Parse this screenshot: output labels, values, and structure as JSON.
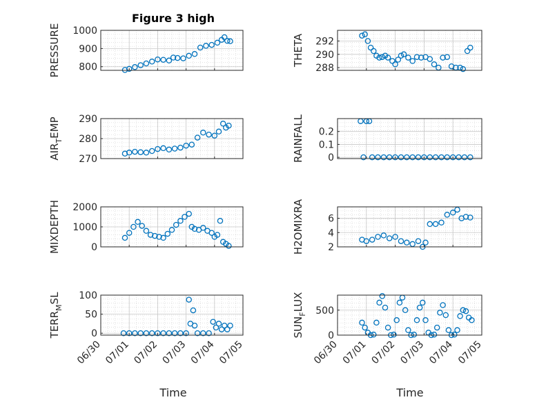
{
  "figure_title": "Figure 3 high",
  "x_label": "Time",
  "x_tick_labels": [
    "06/30",
    "07/01",
    "07/02",
    "07/03",
    "07/04",
    "07/05"
  ],
  "marker_color": "#0072BD",
  "chart_data": [
    {
      "type": "scatter",
      "title": "Figure 3 high",
      "ylabel": "PRESSURE",
      "xlim": [
        0,
        5
      ],
      "ylim": [
        780,
        1000
      ],
      "yticks": [
        800,
        900,
        1000
      ],
      "grid": true,
      "x": [
        0.85,
        1.0,
        1.2,
        1.4,
        1.6,
        1.8,
        2.0,
        2.2,
        2.4,
        2.55,
        2.7,
        2.9,
        3.1,
        3.3,
        3.5,
        3.7,
        3.9,
        4.1,
        4.25,
        4.35,
        4.45,
        4.55
      ],
      "y": [
        782,
        788,
        798,
        808,
        818,
        828,
        840,
        838,
        834,
        850,
        848,
        846,
        860,
        870,
        905,
        915,
        920,
        932,
        948,
        962,
        942,
        940
      ]
    },
    {
      "type": "scatter",
      "ylabel": "THETA",
      "xlim": [
        0,
        5
      ],
      "ylim": [
        287.6,
        293.6
      ],
      "yticks": [
        288,
        290,
        292
      ],
      "grid": true,
      "x": [
        0.85,
        0.95,
        1.05,
        1.15,
        1.25,
        1.35,
        1.45,
        1.55,
        1.65,
        1.75,
        1.9,
        2.0,
        2.1,
        2.2,
        2.3,
        2.45,
        2.6,
        2.75,
        2.9,
        3.05,
        3.2,
        3.35,
        3.5,
        3.65,
        3.8,
        3.95,
        4.1,
        4.25,
        4.35,
        4.5,
        4.6
      ],
      "y": [
        292.8,
        293.0,
        292.0,
        291.0,
        290.5,
        289.8,
        289.5,
        289.6,
        289.8,
        289.5,
        289.0,
        288.5,
        289.2,
        289.8,
        290.0,
        289.5,
        289.0,
        289.6,
        289.5,
        289.6,
        289.3,
        288.5,
        288.0,
        289.5,
        289.6,
        288.2,
        288.0,
        288.0,
        287.8,
        290.5,
        291.0
      ]
    },
    {
      "type": "scatter",
      "ylabel": "AIR_TEMP",
      "xlim": [
        0,
        5
      ],
      "ylim": [
        270,
        290
      ],
      "yticks": [
        270,
        280,
        290
      ],
      "grid": true,
      "x": [
        0.85,
        1.0,
        1.2,
        1.4,
        1.6,
        1.8,
        2.0,
        2.2,
        2.4,
        2.6,
        2.8,
        3.0,
        3.2,
        3.4,
        3.6,
        3.8,
        4.0,
        4.15,
        4.3,
        4.4,
        4.5
      ],
      "y": [
        272.5,
        273.0,
        273.4,
        273.2,
        273.0,
        273.8,
        274.8,
        275.2,
        274.5,
        275.0,
        275.5,
        276.5,
        277.0,
        280.5,
        283.0,
        282.0,
        281.5,
        283.5,
        287.5,
        285.5,
        286.5
      ]
    },
    {
      "type": "scatter",
      "ylabel": "RAINFALL",
      "xlim": [
        0,
        5
      ],
      "ylim": [
        -0.01,
        0.3
      ],
      "yticks": [
        0,
        0.1,
        0.2
      ],
      "grid": true,
      "x": [
        0.8,
        0.9,
        1.0,
        1.1,
        1.2,
        1.4,
        1.6,
        1.8,
        2.0,
        2.2,
        2.4,
        2.6,
        2.8,
        3.0,
        3.2,
        3.4,
        3.6,
        3.8,
        4.0,
        4.2,
        4.4,
        4.6
      ],
      "y": [
        0.28,
        0.0,
        0.28,
        0.28,
        0.0,
        0.0,
        0.0,
        0.0,
        0.0,
        0.0,
        0.0,
        0.0,
        0.0,
        0.0,
        0.0,
        0.0,
        0.0,
        0.0,
        0.0,
        0.0,
        0.0,
        0.0
      ]
    },
    {
      "type": "scatter",
      "ylabel": "MIXDEPTH",
      "xlim": [
        0,
        5
      ],
      "ylim": [
        0,
        2000
      ],
      "yticks": [
        0,
        1000,
        2000
      ],
      "grid": true,
      "x": [
        0.85,
        1.0,
        1.15,
        1.3,
        1.45,
        1.6,
        1.75,
        1.9,
        2.05,
        2.2,
        2.35,
        2.5,
        2.65,
        2.8,
        2.95,
        3.1,
        3.2,
        3.3,
        3.45,
        3.6,
        3.75,
        3.9,
        4.0,
        4.1,
        4.2,
        4.3,
        4.4,
        4.5
      ],
      "y": [
        450,
        700,
        1000,
        1250,
        1050,
        800,
        600,
        550,
        500,
        450,
        650,
        850,
        1100,
        1300,
        1500,
        1650,
        1000,
        900,
        850,
        950,
        800,
        700,
        500,
        600,
        1300,
        250,
        150,
        50
      ]
    },
    {
      "type": "scatter",
      "ylabel": "H2OMIXRA",
      "xlim": [
        0,
        5
      ],
      "ylim": [
        2,
        7.6
      ],
      "yticks": [
        2,
        4,
        6
      ],
      "grid": true,
      "x": [
        0.85,
        1.0,
        1.2,
        1.4,
        1.6,
        1.8,
        2.0,
        2.2,
        2.4,
        2.6,
        2.8,
        2.95,
        3.05,
        3.2,
        3.4,
        3.6,
        3.8,
        4.0,
        4.15,
        4.3,
        4.45,
        4.6
      ],
      "y": [
        3.0,
        2.8,
        3.0,
        3.4,
        3.6,
        3.2,
        3.4,
        2.8,
        2.6,
        2.4,
        2.8,
        2.0,
        2.6,
        5.2,
        5.2,
        5.4,
        6.5,
        6.8,
        7.2,
        6.0,
        6.2,
        6.1
      ]
    },
    {
      "type": "scatter",
      "ylabel": "TERR_MSL",
      "xlim": [
        0,
        5
      ],
      "ylim": [
        -5,
        100
      ],
      "yticks": [
        0,
        50,
        100
      ],
      "grid": true,
      "x": [
        0.8,
        1.0,
        1.2,
        1.4,
        1.6,
        1.8,
        2.0,
        2.2,
        2.4,
        2.6,
        2.8,
        3.0,
        3.1,
        3.15,
        3.25,
        3.3,
        3.4,
        3.6,
        3.8,
        3.95,
        4.05,
        4.15,
        4.25,
        4.35,
        4.45,
        4.55
      ],
      "y": [
        0,
        0,
        0,
        0,
        0,
        0,
        0,
        0,
        0,
        0,
        0,
        0,
        88,
        25,
        60,
        20,
        0,
        0,
        0,
        30,
        15,
        25,
        10,
        20,
        10,
        20
      ]
    },
    {
      "type": "scatter",
      "ylabel": "SUN_FLUX",
      "xlim": [
        0,
        5
      ],
      "ylim": [
        0,
        800
      ],
      "yticks": [
        0,
        500
      ],
      "grid": true,
      "x": [
        0.85,
        0.95,
        1.05,
        1.15,
        1.25,
        1.35,
        1.45,
        1.55,
        1.65,
        1.75,
        1.85,
        1.95,
        2.05,
        2.15,
        2.25,
        2.35,
        2.45,
        2.55,
        2.65,
        2.75,
        2.85,
        2.95,
        3.05,
        3.15,
        3.25,
        3.35,
        3.45,
        3.55,
        3.65,
        3.75,
        3.85,
        3.95,
        4.05,
        4.15,
        4.25,
        4.35,
        4.45,
        4.55,
        4.65
      ],
      "y": [
        250,
        150,
        50,
        0,
        10,
        250,
        650,
        780,
        550,
        150,
        0,
        10,
        300,
        650,
        750,
        500,
        100,
        0,
        10,
        300,
        550,
        650,
        300,
        50,
        0,
        10,
        150,
        450,
        600,
        400,
        100,
        0,
        10,
        100,
        380,
        500,
        480,
        350,
        300
      ]
    }
  ]
}
